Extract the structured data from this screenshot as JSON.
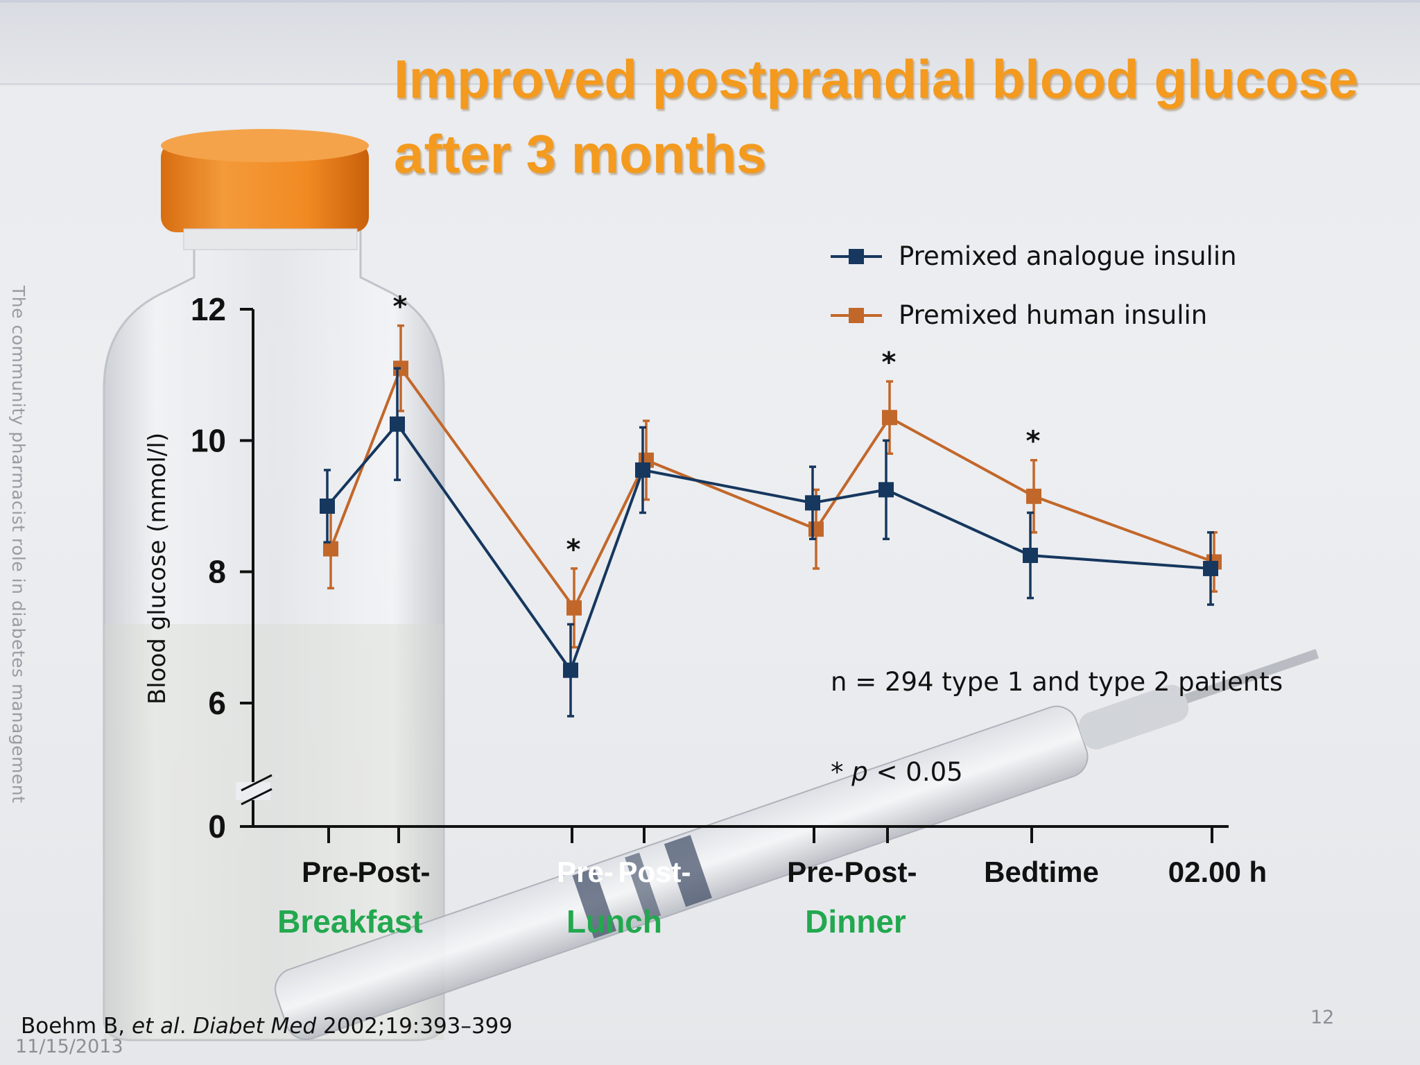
{
  "slide": {
    "title_line1": "Improved postprandial blood glucose",
    "title_line2": "after 3 months",
    "side_text": "The community pharmacist role in diabetes management",
    "citation_author": "Boehm B, ",
    "citation_etal": "et al",
    "citation_dot": ". ",
    "citation_journal": "Diabet Med",
    "citation_rest": " 2002;19:393–399",
    "date": "11/15/2013",
    "page_number": "12",
    "annotation_n": "n = 294 type 1 and type 2 patients",
    "annotation_p_star": "* ",
    "annotation_p_italic": "p",
    "annotation_p_rest": " < 0.05"
  },
  "chart_data": {
    "type": "line",
    "ylabel": "Blood glucose (mmol/l)",
    "ylim": [
      0,
      12
    ],
    "yticks": [
      "0",
      "6",
      "8",
      "10",
      "12"
    ],
    "axis_break": true,
    "x": [
      "Pre-Breakfast",
      "Post-Breakfast",
      "Pre-Lunch",
      "Post-Lunch",
      "Pre-Dinner",
      "Post-Dinner",
      "Bedtime",
      "02.00 h"
    ],
    "x_tick_labels": [
      "Pre-",
      "Post-",
      "Pre-",
      "Post-",
      "Pre-",
      "Post-",
      "Bedtime",
      "02.00 h"
    ],
    "meal_labels": [
      "Breakfast",
      "Lunch",
      "Dinner"
    ],
    "significant": [
      "*",
      "*",
      "*",
      "*"
    ],
    "significant_at": [
      1,
      2,
      5,
      6
    ],
    "legend_position": "top-right",
    "series": [
      {
        "name": "Premixed analogue insulin",
        "color": "#16375e",
        "values": [
          9.0,
          10.25,
          6.5,
          9.55,
          9.05,
          9.25,
          8.25,
          8.05
        ],
        "error": [
          0.55,
          0.85,
          0.7,
          0.65,
          0.55,
          0.75,
          0.65,
          0.55
        ]
      },
      {
        "name": "Premixed human insulin",
        "color": "#c2672a",
        "values": [
          8.35,
          11.1,
          7.45,
          9.7,
          8.65,
          10.35,
          9.15,
          8.15
        ],
        "error": [
          0.6,
          0.65,
          0.6,
          0.6,
          0.6,
          0.55,
          0.55,
          0.45
        ]
      }
    ]
  }
}
